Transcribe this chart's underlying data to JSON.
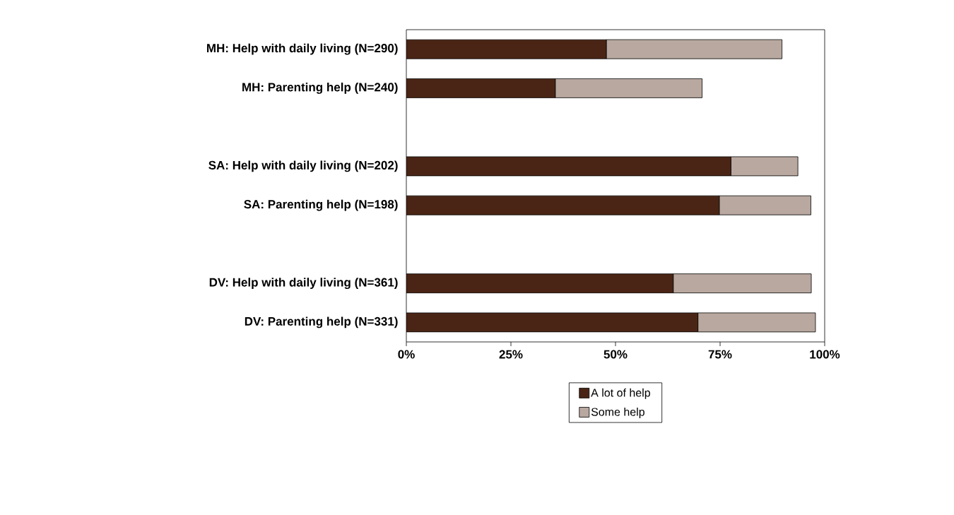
{
  "chart_data": {
    "type": "bar",
    "orientation": "horizontal",
    "stacked": true,
    "categories": [
      "MH: Help with daily living (N=290)",
      "MH: Parenting help (N=240)",
      null,
      "SA: Help with daily living (N=202)",
      "SA: Parenting help (N=198)",
      null,
      "DV: Help with daily living (N=361)",
      "DV: Parenting help (N=331)"
    ],
    "series": [
      {
        "name": "A lot of help",
        "color": "#4a2515",
        "values": [
          47.8,
          35.6,
          null,
          77.6,
          74.8,
          null,
          63.8,
          69.7
        ]
      },
      {
        "name": "Some help",
        "color": "#b8a89f",
        "values": [
          42.0,
          35.1,
          null,
          16.0,
          21.9,
          null,
          33.0,
          28.1
        ]
      }
    ],
    "xlim": [
      0,
      100
    ],
    "xticks": [
      {
        "value": 0,
        "label": "0%"
      },
      {
        "value": 25,
        "label": "25%"
      },
      {
        "value": 50,
        "label": "50%"
      },
      {
        "value": 75,
        "label": "75%"
      },
      {
        "value": 100,
        "label": "100%"
      }
    ],
    "legend": "bottom",
    "grid": false
  }
}
